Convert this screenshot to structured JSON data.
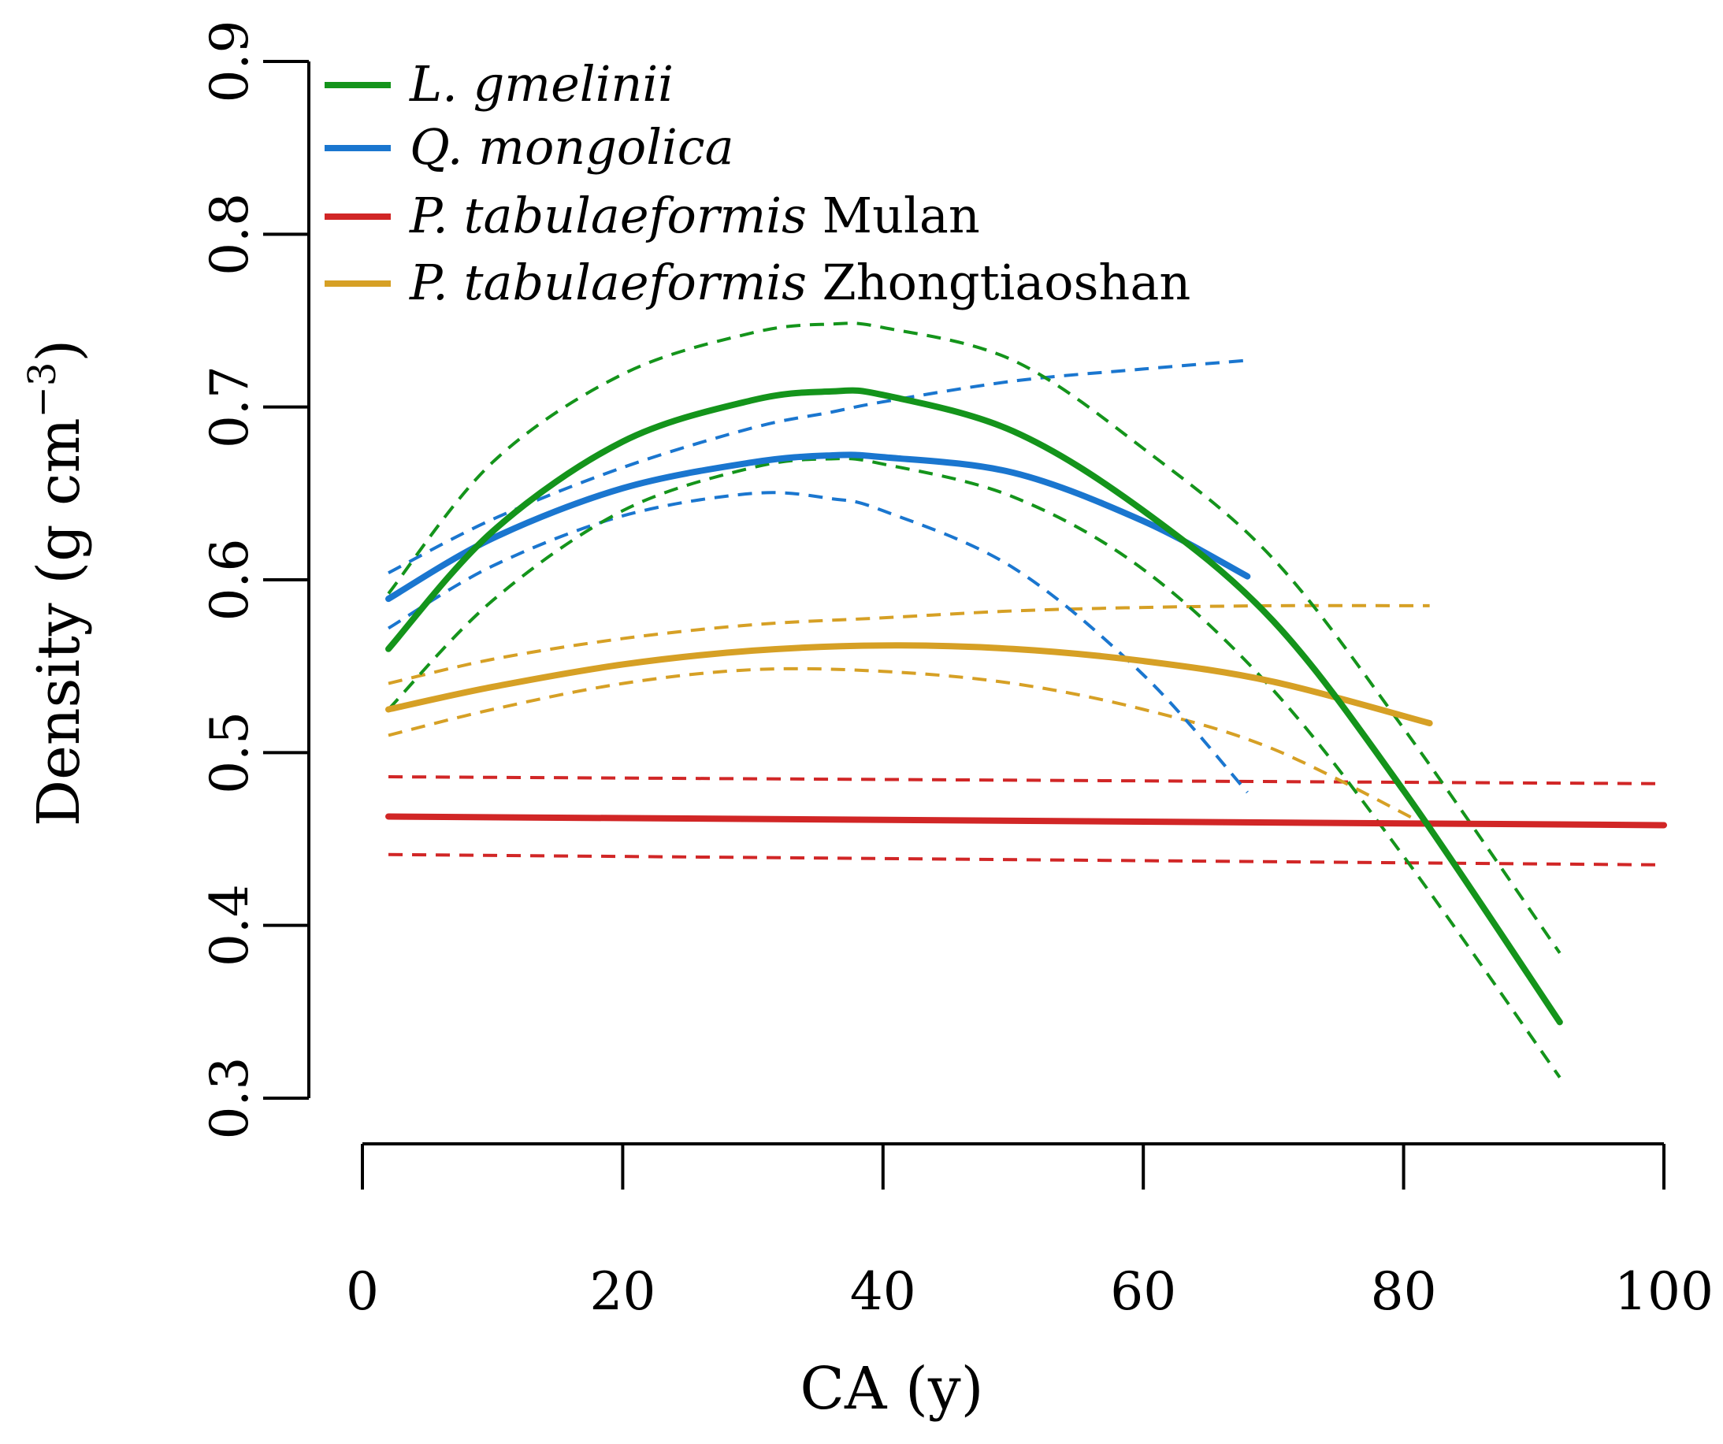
{
  "chart_data": {
    "type": "line",
    "title": "",
    "xlabel": "CA (y)",
    "ylabel": {
      "main": "Density (g cm",
      "superscript": "−3",
      "close": ")"
    },
    "xlim": [
      0,
      100
    ],
    "ylim": [
      0.3,
      0.9
    ],
    "xticks": [
      0,
      20,
      40,
      60,
      80,
      100
    ],
    "yticks": [
      0.3,
      0.4,
      0.5,
      0.6,
      0.7,
      0.8,
      0.9
    ],
    "xtick_labels": [
      "0",
      "20",
      "40",
      "60",
      "80",
      "100"
    ],
    "ytick_labels": [
      "0.3",
      "0.4",
      "0.5",
      "0.6",
      "0.7",
      "0.8",
      "0.9"
    ],
    "grid": false,
    "legend_position": "top-left",
    "series": [
      {
        "name": "L. gmelinii",
        "legend_italic": "L. gmelinii",
        "legend_plain": "",
        "color": "#14941b",
        "x": [
          2,
          10,
          20,
          30,
          36,
          40,
          50,
          60,
          70,
          80,
          92
        ],
        "fit": [
          0.56,
          0.628,
          0.68,
          0.704,
          0.709,
          0.707,
          0.686,
          0.64,
          0.576,
          0.478,
          0.344
        ],
        "lower": [
          0.525,
          0.588,
          0.64,
          0.665,
          0.67,
          0.667,
          0.648,
          0.606,
          0.536,
          0.44,
          0.312
        ],
        "upper": [
          0.592,
          0.668,
          0.719,
          0.743,
          0.748,
          0.746,
          0.727,
          0.676,
          0.612,
          0.514,
          0.384
        ]
      },
      {
        "name": "Q. mongolica",
        "legend_italic": "Q. mongolica",
        "legend_plain": "",
        "color": "#1a76cf",
        "x": [
          2,
          10,
          20,
          30,
          36,
          40,
          50,
          60,
          68
        ],
        "fit": [
          0.589,
          0.624,
          0.653,
          0.668,
          0.672,
          0.671,
          0.662,
          0.634,
          0.602
        ],
        "lower": [
          0.572,
          0.608,
          0.637,
          0.65,
          0.647,
          0.64,
          0.607,
          0.545,
          0.477
        ],
        "upper": [
          0.604,
          0.635,
          0.665,
          0.688,
          0.697,
          0.703,
          0.715,
          0.722,
          0.727
        ]
      },
      {
        "name": "P. tabulaeformis Mulan",
        "legend_italic": "P. tabulaeformis",
        "legend_plain": " Mulan",
        "color": "#d12626",
        "x": [
          2,
          100
        ],
        "fit": [
          0.463,
          0.458
        ],
        "lower": [
          0.441,
          0.435
        ],
        "upper": [
          0.486,
          0.482
        ]
      },
      {
        "name": "P. tabulaeformis Zhongtiaoshan",
        "legend_italic": "P. tabulaeformis",
        "legend_plain": " Zhongtiaoshan",
        "color": "#d6a025",
        "x": [
          2,
          10,
          20,
          30,
          40,
          50,
          60,
          70,
          82
        ],
        "fit": [
          0.525,
          0.538,
          0.551,
          0.559,
          0.562,
          0.56,
          0.553,
          0.541,
          0.517
        ],
        "lower": [
          0.51,
          0.525,
          0.54,
          0.548,
          0.547,
          0.54,
          0.525,
          0.502,
          0.457
        ],
        "upper": [
          0.54,
          0.554,
          0.566,
          0.574,
          0.578,
          0.582,
          0.584,
          0.585,
          0.585
        ]
      }
    ]
  }
}
